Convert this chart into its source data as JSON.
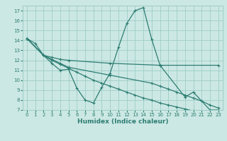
{
  "xlabel": "Humidex (Indice chaleur)",
  "bg_color": "#cce8e4",
  "grid_color": "#9ecdc7",
  "line_color": "#2d7d72",
  "xlim": [
    -0.5,
    23.5
  ],
  "ylim": [
    7,
    17.5
  ],
  "xticks": [
    0,
    1,
    2,
    3,
    4,
    5,
    6,
    7,
    8,
    9,
    10,
    11,
    12,
    13,
    14,
    15,
    16,
    17,
    18,
    19,
    20,
    21,
    22,
    23
  ],
  "yticks": [
    7,
    8,
    9,
    10,
    11,
    12,
    13,
    14,
    15,
    16,
    17
  ],
  "line1_x": [
    0,
    1,
    2,
    3,
    4,
    5,
    6,
    7,
    8,
    9,
    10,
    11,
    12,
    13,
    14,
    15,
    16,
    19,
    20,
    22,
    23
  ],
  "line1_y": [
    14.2,
    13.7,
    12.5,
    11.7,
    11.0,
    11.1,
    9.2,
    8.0,
    7.7,
    9.3,
    10.7,
    13.3,
    15.7,
    17.0,
    17.3,
    14.1,
    11.5,
    8.3,
    8.8,
    7.0,
    7.0
  ],
  "line2_x": [
    0,
    2,
    3,
    4,
    5,
    10,
    16,
    23
  ],
  "line2_y": [
    14.2,
    12.5,
    12.3,
    12.1,
    12.0,
    11.7,
    11.5,
    11.5
  ],
  "line3_x": [
    0,
    2,
    3,
    4,
    5,
    10,
    15,
    16,
    17,
    18,
    19,
    20,
    21,
    22,
    23
  ],
  "line3_y": [
    14.2,
    12.5,
    12.1,
    11.7,
    11.3,
    10.5,
    9.7,
    9.4,
    9.1,
    8.8,
    8.5,
    8.2,
    7.9,
    7.5,
    7.2
  ],
  "line4_x": [
    0,
    2,
    3,
    4,
    5,
    6,
    7,
    8,
    9,
    10,
    11,
    12,
    13,
    14,
    15,
    16,
    17,
    18,
    19,
    20,
    21,
    22,
    23
  ],
  "line4_y": [
    14.2,
    12.5,
    12.0,
    11.6,
    11.2,
    10.8,
    10.4,
    10.0,
    9.7,
    9.4,
    9.1,
    8.8,
    8.5,
    8.2,
    8.0,
    7.7,
    7.5,
    7.3,
    7.1,
    6.9,
    6.8,
    6.7,
    6.6
  ]
}
